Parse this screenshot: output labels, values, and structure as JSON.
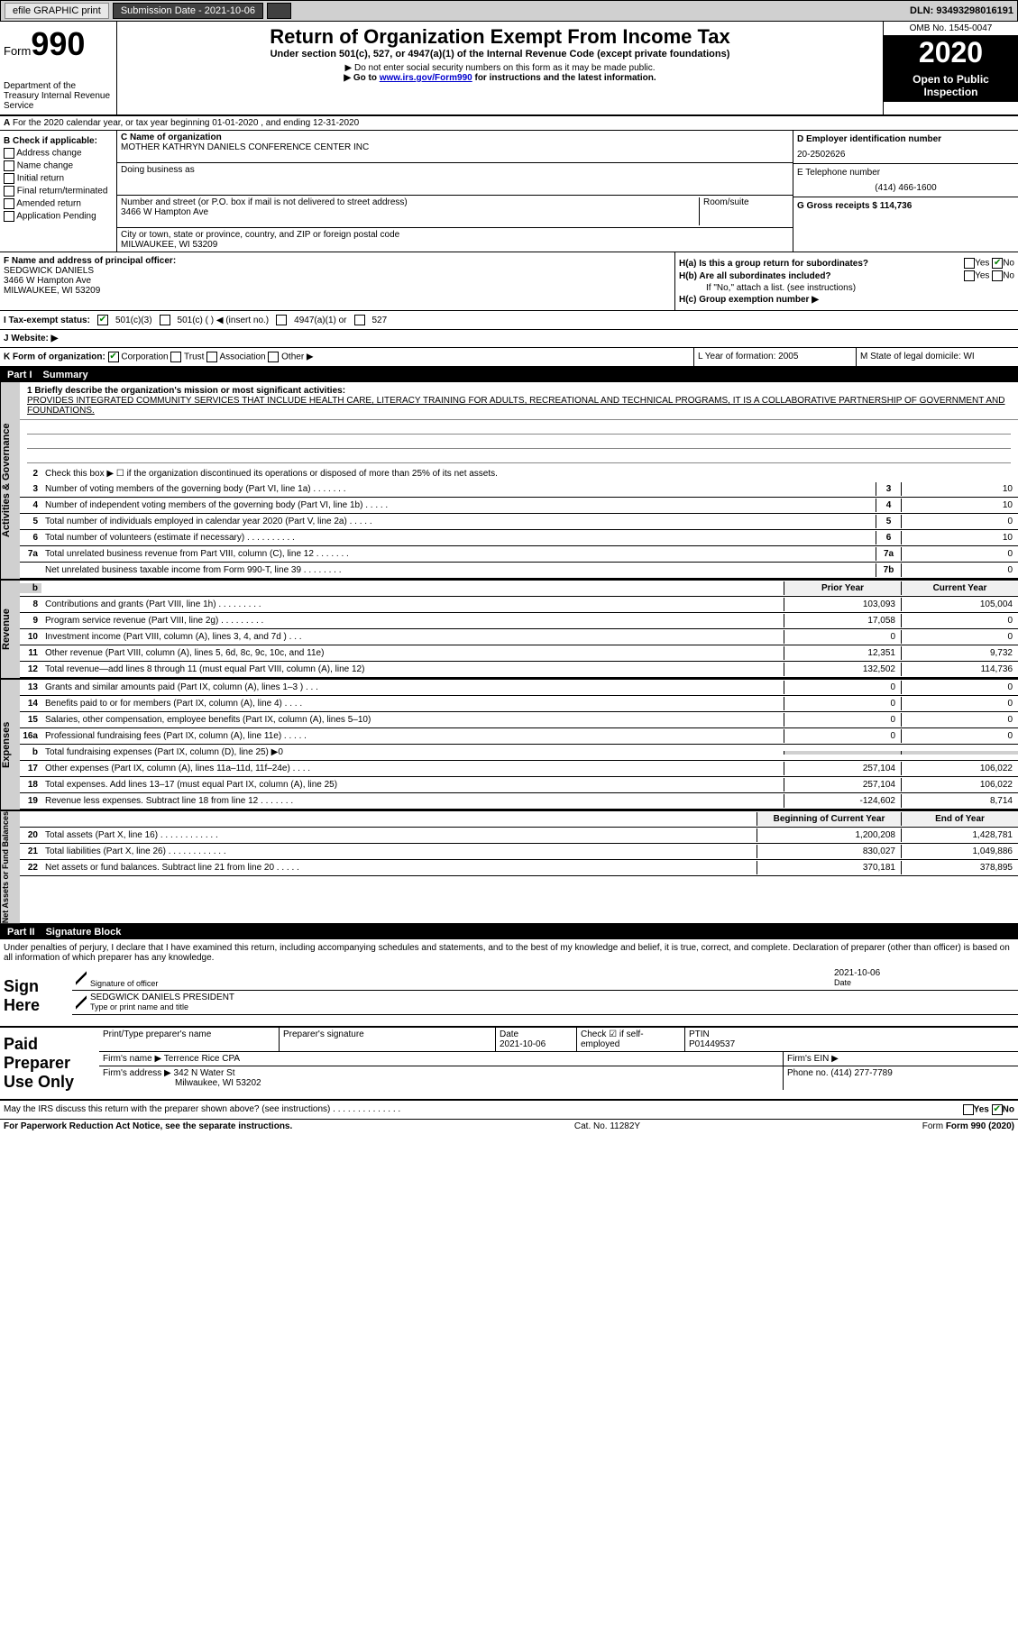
{
  "topbar": {
    "efile_label": "efile GRAPHIC print",
    "submission_label": "Submission Date - 2021-10-06",
    "dln_label": "DLN: 93493298016191"
  },
  "header": {
    "form_label": "Form",
    "form_number": "990",
    "dept": "Department of the Treasury\nInternal Revenue Service",
    "title": "Return of Organization Exempt From Income Tax",
    "subtitle": "Under section 501(c), 527, or 4947(a)(1) of the Internal Revenue Code (except private foundations)",
    "note1": "▶ Do not enter social security numbers on this form as it may be made public.",
    "note2_pre": "▶ Go to ",
    "note2_link": "www.irs.gov/Form990",
    "note2_post": " for instructions and the latest information.",
    "omb": "OMB No. 1545-0047",
    "year": "2020",
    "inspection": "Open to Public Inspection"
  },
  "section_a": "For the 2020 calendar year, or tax year beginning 01-01-2020    , and ending 12-31-2020",
  "b_checks": {
    "label": "B Check if applicable:",
    "items": [
      "Address change",
      "Name change",
      "Initial return",
      "Final return/terminated",
      "Amended return",
      "Application Pending"
    ]
  },
  "c_block": {
    "name_label": "C Name of organization",
    "name": "MOTHER KATHRYN DANIELS CONFERENCE CENTER INC",
    "dba_label": "Doing business as",
    "addr_label": "Number and street (or P.O. box if mail is not delivered to street address)",
    "room_label": "Room/suite",
    "addr": "3466 W Hampton Ave",
    "city_label": "City or town, state or province, country, and ZIP or foreign postal code",
    "city": "MILWAUKEE, WI  53209"
  },
  "d_block": {
    "ein_label": "D Employer identification number",
    "ein": "20-2502626",
    "phone_label": "E Telephone number",
    "phone": "(414) 466-1600",
    "gross_label": "G Gross receipts $ 114,736"
  },
  "f_block": {
    "label": "F  Name and address of principal officer:",
    "name": "SEDGWICK DANIELS",
    "addr1": "3466 W Hampton Ave",
    "addr2": "MILWAUKEE, WI  53209"
  },
  "h_block": {
    "ha": "H(a)  Is this a group return for subordinates?",
    "hb": "H(b)  Are all subordinates included?",
    "hb_note": "If \"No,\" attach a list. (see instructions)",
    "hc": "H(c)  Group exemption number ▶",
    "yes": "Yes",
    "no": "No"
  },
  "i_row": {
    "label": "I    Tax-exempt status:",
    "opts": [
      "501(c)(3)",
      "501(c) (  ) ◀ (insert no.)",
      "4947(a)(1) or",
      "527"
    ]
  },
  "j_row": "J   Website: ▶",
  "k_row": {
    "label": "K Form of organization:",
    "opts": [
      "Corporation",
      "Trust",
      "Association",
      "Other ▶"
    ]
  },
  "l_row": "L Year of formation: 2005",
  "m_row": "M State of legal domicile: WI",
  "part1": {
    "num": "Part I",
    "title": "Summary",
    "line1_label": "1   Briefly describe the organization's mission or most significant activities:",
    "mission": "PROVIDES INTEGRATED COMMUNITY SERVICES THAT INCLUDE HEALTH CARE, LITERACY TRAINING FOR ADULTS, RECREATIONAL AND TECHNICAL PROGRAMS, IT IS A COLLABORATIVE PARTNERSHIP OF GOVERNMENT AND FOUNDATIONS.",
    "line2": "Check this box ▶ ☐  if the organization discontinued its operations or disposed of more than 25% of its net assets.",
    "vtab_ag": "Activities & Governance",
    "vtab_rev": "Revenue",
    "vtab_exp": "Expenses",
    "vtab_na": "Net Assets or Fund Balances",
    "lines_top": [
      {
        "n": "3",
        "t": "Number of voting members of the governing body (Part VI, line 1a)   .    .    .    .    .    .    .",
        "b": "3",
        "v": "10"
      },
      {
        "n": "4",
        "t": "Number of independent voting members of the governing body (Part VI, line 1b)   .    .    .    .    .",
        "b": "4",
        "v": "10"
      },
      {
        "n": "5",
        "t": "Total number of individuals employed in calendar year 2020 (Part V, line 2a)   .    .    .    .    .",
        "b": "5",
        "v": "0"
      },
      {
        "n": "6",
        "t": "Total number of volunteers (estimate if necessary)   .    .    .    .    .    .    .    .    .    .",
        "b": "6",
        "v": "10"
      },
      {
        "n": "7a",
        "t": "Total unrelated business revenue from Part VIII, column (C), line 12   .    .    .    .    .    .    .",
        "b": "7a",
        "v": "0"
      },
      {
        "n": "",
        "t": "Net unrelated business taxable income from Form 990-T, line 39   .    .    .    .    .    .    .    .",
        "b": "7b",
        "v": "0"
      }
    ],
    "col_prior": "Prior Year",
    "col_current": "Current Year",
    "revenue_lines": [
      {
        "n": "8",
        "t": "Contributions and grants (Part VIII, line 1h)   .    .    .    .    .    .    .    .    .",
        "p": "103,093",
        "c": "105,004"
      },
      {
        "n": "9",
        "t": "Program service revenue (Part VIII, line 2g)   .    .    .    .    .    .    .    .    .",
        "p": "17,058",
        "c": "0"
      },
      {
        "n": "10",
        "t": "Investment income (Part VIII, column (A), lines 3, 4, and 7d )   .    .    .",
        "p": "0",
        "c": "0"
      },
      {
        "n": "11",
        "t": "Other revenue (Part VIII, column (A), lines 5, 6d, 8c, 9c, 10c, and 11e)",
        "p": "12,351",
        "c": "9,732"
      },
      {
        "n": "12",
        "t": "Total revenue—add lines 8 through 11 (must equal Part VIII, column (A), line 12)",
        "p": "132,502",
        "c": "114,736"
      }
    ],
    "expense_lines": [
      {
        "n": "13",
        "t": "Grants and similar amounts paid (Part IX, column (A), lines 1–3 )   .    .    .",
        "p": "0",
        "c": "0"
      },
      {
        "n": "14",
        "t": "Benefits paid to or for members (Part IX, column (A), line 4)   .    .    .    .",
        "p": "0",
        "c": "0"
      },
      {
        "n": "15",
        "t": "Salaries, other compensation, employee benefits (Part IX, column (A), lines 5–10)",
        "p": "0",
        "c": "0"
      },
      {
        "n": "16a",
        "t": "Professional fundraising fees (Part IX, column (A), line 11e)   .    .    .    .    .",
        "p": "0",
        "c": "0"
      },
      {
        "n": "b",
        "t": "Total fundraising expenses (Part IX, column (D), line 25) ▶0",
        "p": "",
        "c": "",
        "shaded": true
      },
      {
        "n": "17",
        "t": "Other expenses (Part IX, column (A), lines 11a–11d, 11f–24e)   .    .    .    .",
        "p": "257,104",
        "c": "106,022"
      },
      {
        "n": "18",
        "t": "Total expenses. Add lines 13–17 (must equal Part IX, column (A), line 25)",
        "p": "257,104",
        "c": "106,022"
      },
      {
        "n": "19",
        "t": "Revenue less expenses. Subtract line 18 from line 12   .    .    .    .    .    .    .",
        "p": "-124,602",
        "c": "8,714"
      }
    ],
    "col_begin": "Beginning of Current Year",
    "col_end": "End of Year",
    "na_lines": [
      {
        "n": "20",
        "t": "Total assets (Part X, line 16)   .    .    .    .    .    .    .    .    .    .    .    .",
        "p": "1,200,208",
        "c": "1,428,781"
      },
      {
        "n": "21",
        "t": "Total liabilities (Part X, line 26)   .    .    .    .    .    .    .    .    .    .    .    .",
        "p": "830,027",
        "c": "1,049,886"
      },
      {
        "n": "22",
        "t": "Net assets or fund balances. Subtract line 21 from line 20   .    .    .    .    .",
        "p": "370,181",
        "c": "378,895"
      }
    ]
  },
  "part2": {
    "num": "Part II",
    "title": "Signature Block",
    "decl": "Under penalties of perjury, I declare that I have examined this return, including accompanying schedules and statements, and to the best of my knowledge and belief, it is true, correct, and complete. Declaration of preparer (other than officer) is based on all information of which preparer has any knowledge.",
    "sign_here": "Sign Here",
    "sig_officer": "Signature of officer",
    "sig_date": "2021-10-06",
    "date_label": "Date",
    "officer_name": "SEDGWICK DANIELS  PRESIDENT",
    "type_name": "Type or print name and title",
    "paid_prep": "Paid Preparer Use Only",
    "prep_name_label": "Print/Type preparer's name",
    "prep_sig_label": "Preparer's signature",
    "prep_date_label": "Date",
    "prep_date": "2021-10-06",
    "check_self": "Check ☑ if self-employed",
    "ptin_label": "PTIN",
    "ptin": "P01449537",
    "firm_name_label": "Firm's name    ▶",
    "firm_name": "Terrence Rice CPA",
    "firm_ein_label": "Firm's EIN ▶",
    "firm_addr_label": "Firm's address ▶",
    "firm_addr": "342 N Water St",
    "firm_city": "Milwaukee, WI  53202",
    "firm_phone_label": "Phone no. (414) 277-7789",
    "discuss": "May the IRS discuss this return with the preparer shown above? (see instructions)   .    .    .    .    .    .    .    .    .    .    .    .    .    .",
    "yes": "Yes",
    "no": "No"
  },
  "footer": {
    "pra": "For Paperwork Reduction Act Notice, see the separate instructions.",
    "cat": "Cat. No. 11282Y",
    "form": "Form 990 (2020)"
  }
}
